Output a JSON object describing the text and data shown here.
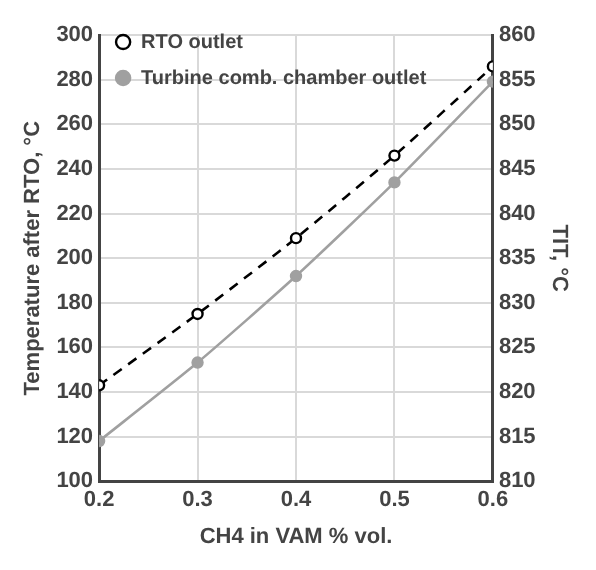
{
  "chart_data": {
    "type": "line",
    "xlabel": "CH4 in VAM % vol.",
    "ylabel": "Temperature after RTO, °C",
    "y2label": "TIT, °C",
    "x": [
      0.2,
      0.3,
      0.4,
      0.5,
      0.6
    ],
    "series": [
      {
        "name": "RTO outlet",
        "color": "#000000",
        "values": [
          143,
          175,
          209,
          246,
          286
        ],
        "marker": "circle",
        "line_style": "dashed"
      },
      {
        "name": "Turbine comb. chamber outlet",
        "color": "#a0a0a0",
        "values": [
          814.5,
          823.3,
          833,
          843.5,
          854.8
        ],
        "axis": "y2",
        "marker": "circle",
        "line_style": "solid"
      }
    ],
    "xlim": [
      0.2,
      0.6
    ],
    "xticks": [
      0.2,
      0.3,
      0.4,
      0.5,
      0.6
    ],
    "ylim": [
      100,
      300
    ],
    "yticks": [
      100,
      120,
      140,
      160,
      180,
      200,
      220,
      240,
      260,
      280,
      300
    ],
    "y2lim": [
      810,
      860
    ],
    "y2ticks": [
      810,
      815,
      820,
      825,
      830,
      835,
      840,
      845,
      850,
      855,
      860
    ],
    "grid": true,
    "legend": "top left"
  }
}
